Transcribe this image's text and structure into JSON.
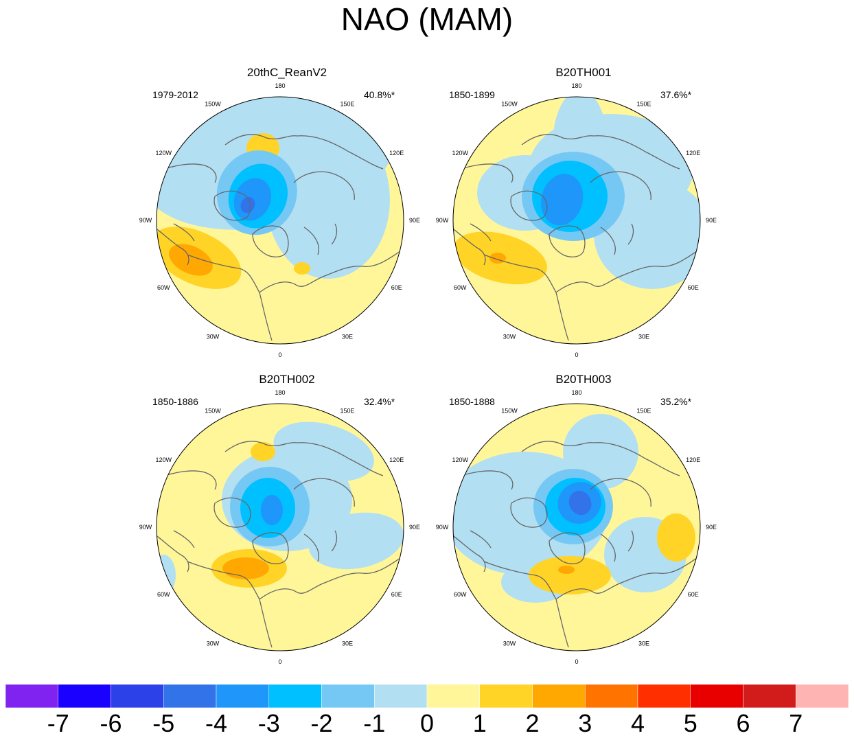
{
  "title": "NAO (MAM)",
  "panels": [
    {
      "title": "20thC_ReanV2",
      "period": "1979-2012",
      "variance": "40.8%*"
    },
    {
      "title": "B20TH001",
      "period": "1850-1899",
      "variance": "37.6%*"
    },
    {
      "title": "B20TH002",
      "period": "1850-1886",
      "variance": "32.4%*"
    },
    {
      "title": "B20TH003",
      "period": "1850-1888",
      "variance": "35.2%*"
    }
  ],
  "longitude_labels": [
    "180",
    "150E",
    "120E",
    "90E",
    "60E",
    "30E",
    "0",
    "30W",
    "60W",
    "90W",
    "120W",
    "150W"
  ],
  "colorbar": {
    "colors": [
      "#8022f0",
      "#1a00ff",
      "#2c41e8",
      "#3273ea",
      "#1e96fa",
      "#00c0ff",
      "#76c8f4",
      "#b2dff2",
      "#fff69a",
      "#ffd426",
      "#ffa801",
      "#ff7300",
      "#ff2f00",
      "#e80000",
      "#d21b1b",
      "#ffb4b4"
    ],
    "labels": [
      "-7",
      "-6",
      "-5",
      "-4",
      "-3",
      "-2",
      "-1",
      "0",
      "1",
      "2",
      "3",
      "4",
      "5",
      "6",
      "7"
    ]
  },
  "palette": {
    "neg1": "#b2dff2",
    "neg2": "#76c8f4",
    "neg3": "#00c0ff",
    "neg4": "#1e96fa",
    "neg5": "#3273ea",
    "pos0": "#fff69a",
    "pos1": "#ffd426",
    "pos2": "#ffa801",
    "pos3": "#ff7300",
    "coast": "#666666"
  }
}
